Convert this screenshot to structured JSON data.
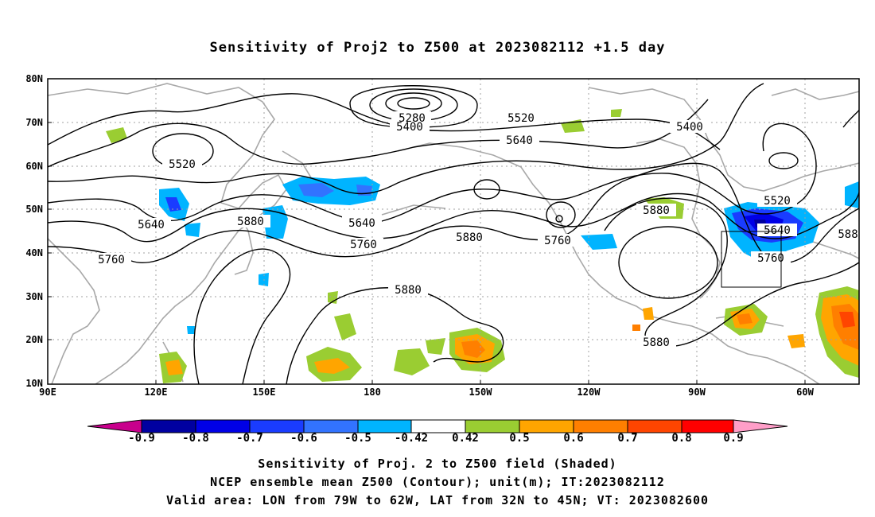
{
  "title": "Sensitivity of Proj2 to Z500 at 2023082112 +1.5 day",
  "lat_labels": [
    "80N",
    "70N",
    "60N",
    "50N",
    "40N",
    "30N",
    "20N",
    "10N"
  ],
  "lon_labels": [
    "90E",
    "120E",
    "150E",
    "180",
    "150W",
    "120W",
    "90W",
    "60W"
  ],
  "contour_labels": [
    "5280",
    "5400",
    "5520",
    "5400",
    "5520",
    "5640",
    "5640",
    "5760",
    "5880",
    "5640",
    "5760",
    "5880",
    "5760",
    "5880",
    "5880",
    "5520",
    "5640",
    "5760",
    "5880",
    "588"
  ],
  "colorbar": {
    "labels": [
      "-0.9",
      "-0.8",
      "-0.7",
      "-0.6",
      "-0.5",
      "-0.42",
      "0.42",
      "0.5",
      "0.6",
      "0.7",
      "0.8",
      "0.9"
    ],
    "colors": [
      "#0000a0",
      "#0000e6",
      "#1a3cff",
      "#3273ff",
      "#00b4ff",
      "#ffffff",
      "#9acd32",
      "#ffa500",
      "#ff7f00",
      "#ff4500",
      "#ff0000"
    ],
    "under_color": "#c8008c",
    "over_color": "#ff9ec8"
  },
  "footer": [
    "Sensitivity of Proj. 2 to Z500 field (Shaded)",
    "NCEP ensemble mean Z500 (Contour); unit(m); IT:2023082112",
    "Valid area: LON from 79W to 62W, LAT from 32N to 45N; VT: 2023082600"
  ]
}
